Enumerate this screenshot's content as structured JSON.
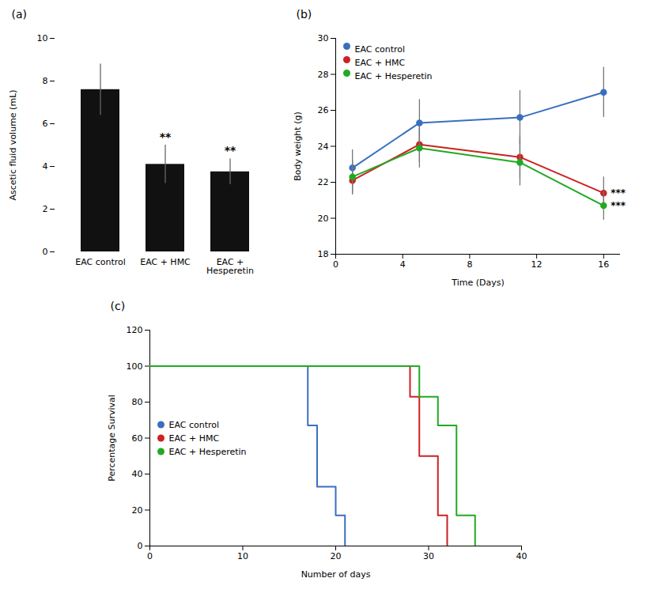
{
  "chart_data": [
    {
      "type": "bar",
      "title": "(a)",
      "categories": [
        "EAC control",
        "EAC + HMC",
        "EAC +\nHesperetin"
      ],
      "values": [
        7.6,
        4.1,
        3.75
      ],
      "errors": [
        1.2,
        0.9,
        0.6
      ],
      "color": "#111111",
      "ylabel": "Ascetic fluid volume (mL)",
      "ylim": [
        0,
        10
      ],
      "yticks": [
        0,
        2,
        4,
        6,
        8,
        10
      ],
      "annotations": [
        {
          "category": "EAC + HMC",
          "text": "**"
        },
        {
          "category": "EAC +\nHesperetin",
          "text": "**"
        }
      ]
    },
    {
      "type": "line",
      "title": "(b)",
      "xlabel": "Time (Days)",
      "ylabel": "Body weight (g)",
      "x": [
        1,
        5,
        11,
        16
      ],
      "series": [
        {
          "name": "EAC control",
          "color": "#3a6fbf",
          "values": [
            22.8,
            25.3,
            25.6,
            27.0
          ],
          "errors": [
            1.0,
            1.3,
            1.5,
            1.4
          ]
        },
        {
          "name": "EAC + HMC",
          "color": "#cc2222",
          "values": [
            22.1,
            24.1,
            23.4,
            21.4
          ],
          "errors": [
            0.8,
            1.0,
            1.2,
            0.9
          ]
        },
        {
          "name": "EAC + Hesperetin",
          "color": "#22aa22",
          "values": [
            22.3,
            23.9,
            23.1,
            20.7
          ],
          "errors": [
            0.9,
            1.1,
            1.3,
            0.8
          ]
        }
      ],
      "xlim": [
        0,
        17
      ],
      "xticks": [
        0,
        4,
        8,
        12,
        16
      ],
      "ylim": [
        18,
        30
      ],
      "yticks": [
        18,
        20,
        22,
        24,
        26,
        28,
        30
      ],
      "marker": "circle",
      "legend": "upper left",
      "annotations": [
        {
          "series": "EAC + HMC",
          "text": "***"
        },
        {
          "series": "EAC + Hesperetin",
          "text": "***"
        }
      ]
    },
    {
      "type": "line",
      "title": "(c)",
      "xlabel": "Number of days",
      "ylabel": "Percentage Survival",
      "series": [
        {
          "name": "EAC control",
          "color": "#3a6fbf",
          "x": [
            0,
            17,
            17,
            18,
            18,
            20,
            20,
            21,
            21
          ],
          "values": [
            100,
            100,
            67,
            67,
            33,
            33,
            17,
            17,
            0
          ]
        },
        {
          "name": "EAC + HMC",
          "color": "#cc2222",
          "x": [
            0,
            28,
            28,
            29,
            29,
            31,
            31,
            32,
            32
          ],
          "values": [
            100,
            100,
            83,
            83,
            50,
            50,
            17,
            17,
            0
          ]
        },
        {
          "name": "EAC + Hesperetin",
          "color": "#22aa22",
          "x": [
            0,
            29,
            29,
            31,
            31,
            33,
            33,
            35,
            35
          ],
          "values": [
            100,
            100,
            83,
            83,
            67,
            67,
            17,
            17,
            0
          ]
        }
      ],
      "xlim": [
        0,
        40
      ],
      "xticks": [
        0,
        10,
        20,
        30,
        40
      ],
      "ylim": [
        0,
        120
      ],
      "yticks": [
        0,
        20,
        40,
        60,
        80,
        100,
        120
      ],
      "legend": "center left"
    }
  ]
}
